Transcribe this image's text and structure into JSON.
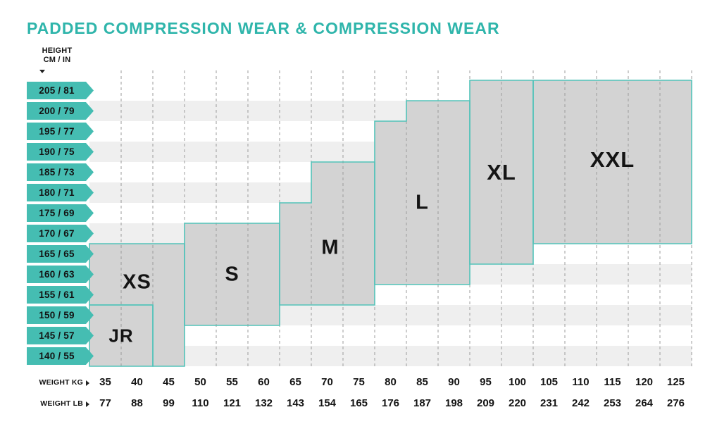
{
  "title": "PADDED COMPRESSION WEAR & COMPRESSION WEAR",
  "colors": {
    "teal": "#2FB5AB",
    "tag_fill": "#45BDB2",
    "region_fill": "#d3d3d3",
    "region_border": "#53C3B9",
    "stripe": "#efefef",
    "dash": "#9b9b9b",
    "ink": "#131313"
  },
  "icons": {
    "down_arrow": "triangle-down",
    "right_arrow": "triangle-right"
  },
  "axis": {
    "height_header": [
      "HEIGHT",
      "CM / IN"
    ],
    "weight_kg_label": "WEIGHT KG",
    "weight_lb_label": "WEIGHT LB"
  },
  "chart_data": {
    "type": "heatmap",
    "subtype": "size-region-map",
    "title": "PADDED COMPRESSION WEAR & COMPRESSION WEAR",
    "y_axis": {
      "label": "HEIGHT CM / IN",
      "ticks": [
        "205 / 81",
        "200 / 79",
        "195 / 77",
        "190 / 75",
        "185 / 73",
        "180 / 71",
        "175 / 69",
        "170 / 67",
        "165 / 65",
        "160 / 63",
        "155 / 61",
        "150 / 59",
        "145 / 57",
        "140 / 55"
      ]
    },
    "x_axis": {
      "label_primary": "WEIGHT KG",
      "kg": [
        35,
        40,
        45,
        50,
        55,
        60,
        65,
        70,
        75,
        80,
        85,
        90,
        95,
        100,
        105,
        110,
        115,
        120,
        125
      ],
      "label_secondary": "WEIGHT LB",
      "lb": [
        77,
        88,
        99,
        110,
        121,
        132,
        143,
        154,
        165,
        176,
        187,
        198,
        209,
        220,
        231,
        242,
        253,
        264,
        276
      ]
    },
    "grid": {
      "columns": 19,
      "rows": 14,
      "column_dividers": "dashed",
      "row_striping": true
    },
    "regions": [
      {
        "label": "XS",
        "polygon": [
          [
            0,
            8
          ],
          [
            3,
            8
          ],
          [
            3,
            14
          ],
          [
            2,
            14
          ],
          [
            2,
            11
          ],
          [
            0,
            11
          ]
        ],
        "label_pos": [
          1.5,
          9.9
        ],
        "label_size": 29
      },
      {
        "label": "JR",
        "polygon": [
          [
            0,
            11
          ],
          [
            2,
            11
          ],
          [
            2,
            14
          ],
          [
            0,
            14
          ]
        ],
        "label_pos": [
          1,
          12.5
        ],
        "label_size": 26
      },
      {
        "label": "S",
        "polygon": [
          [
            3,
            7
          ],
          [
            6,
            7
          ],
          [
            6,
            12
          ],
          [
            3,
            12
          ]
        ],
        "label_pos": [
          4.5,
          9.5
        ],
        "label_size": 29
      },
      {
        "label": "M",
        "polygon": [
          [
            6,
            6
          ],
          [
            7,
            6
          ],
          [
            7,
            4
          ],
          [
            9,
            4
          ],
          [
            9,
            11
          ],
          [
            6,
            11
          ]
        ],
        "label_pos": [
          7.6,
          8.2
        ],
        "label_size": 29
      },
      {
        "label": "L",
        "polygon": [
          [
            9,
            2
          ],
          [
            10,
            2
          ],
          [
            10,
            1
          ],
          [
            12,
            1
          ],
          [
            12,
            10
          ],
          [
            9,
            10
          ]
        ],
        "label_pos": [
          10.5,
          6
        ],
        "label_size": 29
      },
      {
        "label": "XL",
        "polygon": [
          [
            12,
            0
          ],
          [
            14,
            0
          ],
          [
            14,
            9
          ],
          [
            12,
            9
          ]
        ],
        "label_pos": [
          13,
          4.5
        ],
        "label_size": 31
      },
      {
        "label": "XXL",
        "polygon": [
          [
            14,
            0
          ],
          [
            19,
            0
          ],
          [
            19,
            8
          ],
          [
            14,
            8
          ]
        ],
        "label_pos": [
          16.5,
          3.9
        ],
        "label_size": 31
      }
    ]
  }
}
